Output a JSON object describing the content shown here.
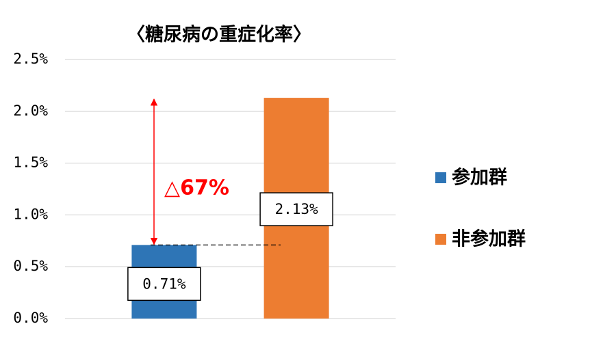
{
  "chart_data": {
    "type": "bar",
    "title": "〈糖尿病の重症化率〉",
    "categories": [
      null,
      null
    ],
    "series": [
      {
        "name": "参加群",
        "color": "#2e75b6",
        "values": [
          0.71,
          null
        ],
        "value_labels": [
          "0.71%",
          null
        ]
      },
      {
        "name": "非参加群",
        "color": "#ed7d31",
        "values": [
          null,
          2.13
        ],
        "value_labels": [
          null,
          "2.13%"
        ]
      }
    ],
    "annotation": "△67%",
    "ylim": [
      0,
      2.5
    ],
    "yticks": [
      {
        "value": 0,
        "label": "0.0%"
      },
      {
        "value": 0.5,
        "label": "0.5%"
      },
      {
        "value": 1,
        "label": "1.0%"
      },
      {
        "value": 1.5,
        "label": "1.5%"
      },
      {
        "value": 2,
        "label": "2.0%"
      },
      {
        "value": 2.5,
        "label": "2.5%"
      }
    ],
    "grid": true,
    "legend": "right"
  }
}
